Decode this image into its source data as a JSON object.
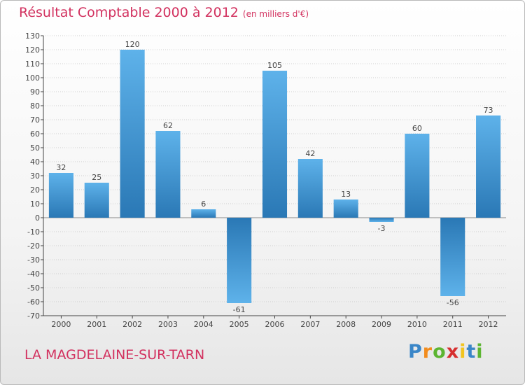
{
  "header": {
    "title": "Résultat Comptable 2000 à 2012",
    "subtitle": "(en milliers d'€)"
  },
  "footer": {
    "commune": "LA MAGDELAINE-SUR-TARN",
    "logo_letters": [
      "P",
      "r",
      "o",
      "x",
      "i",
      "t",
      "i"
    ],
    "logo_colors": [
      "#3a86c8",
      "#f28c1e",
      "#5cb531",
      "#d62f2f",
      "#f2c41e",
      "#3a86c8",
      "#5cb531"
    ]
  },
  "colors": {
    "bar_dark": "#2a78b5",
    "bar_light": "#5eb2ea",
    "grid": "#cfcfcf",
    "zero_line": "#8a8a8a",
    "axis": "#444444",
    "accent": "#d2315f"
  },
  "chart_data": {
    "type": "bar",
    "title": "Résultat Comptable 2000 à 2012",
    "subtitle": "(en milliers d'€)",
    "xlabel": "",
    "ylabel": "",
    "categories": [
      "2000",
      "2001",
      "2002",
      "2003",
      "2004",
      "2005",
      "2006",
      "2007",
      "2008",
      "2009",
      "2010",
      "2011",
      "2012"
    ],
    "values": [
      32,
      25,
      120,
      62,
      6,
      -61,
      105,
      42,
      13,
      -3,
      60,
      -56,
      73
    ],
    "ylim": [
      -70,
      130
    ],
    "ytick_step": 10,
    "grid": true,
    "legend": "none"
  }
}
